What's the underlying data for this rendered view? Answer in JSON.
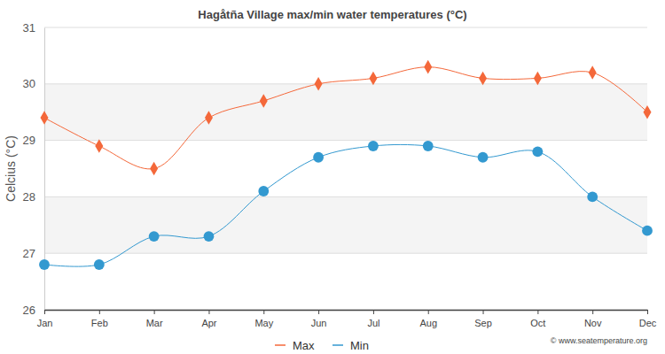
{
  "chart_data": {
    "type": "line",
    "title": "Hagåtña Village max/min water temperatures (°C)",
    "y_label": "Celcius (°C)",
    "categories": [
      "Jan",
      "Feb",
      "Mar",
      "Apr",
      "May",
      "Jun",
      "Jul",
      "Aug",
      "Sep",
      "Oct",
      "Nov",
      "Dec"
    ],
    "series": [
      {
        "name": "Max",
        "color": "#f4683a",
        "marker": "diamond",
        "values": [
          29.4,
          28.9,
          28.5,
          29.4,
          29.7,
          30.0,
          30.1,
          30.3,
          30.1,
          30.1,
          30.2,
          29.5
        ]
      },
      {
        "name": "Min",
        "color": "#3399d0",
        "marker": "circle",
        "values": [
          26.8,
          26.8,
          27.3,
          27.3,
          28.1,
          28.7,
          28.9,
          28.9,
          28.7,
          28.8,
          28.0,
          27.4
        ]
      }
    ],
    "ylim": [
      26,
      31
    ],
    "yticks": [
      26,
      27,
      28,
      29,
      30,
      31
    ],
    "grid": true,
    "legend": "bottom",
    "annotations": [
      "© www.seatemperature.org"
    ]
  }
}
